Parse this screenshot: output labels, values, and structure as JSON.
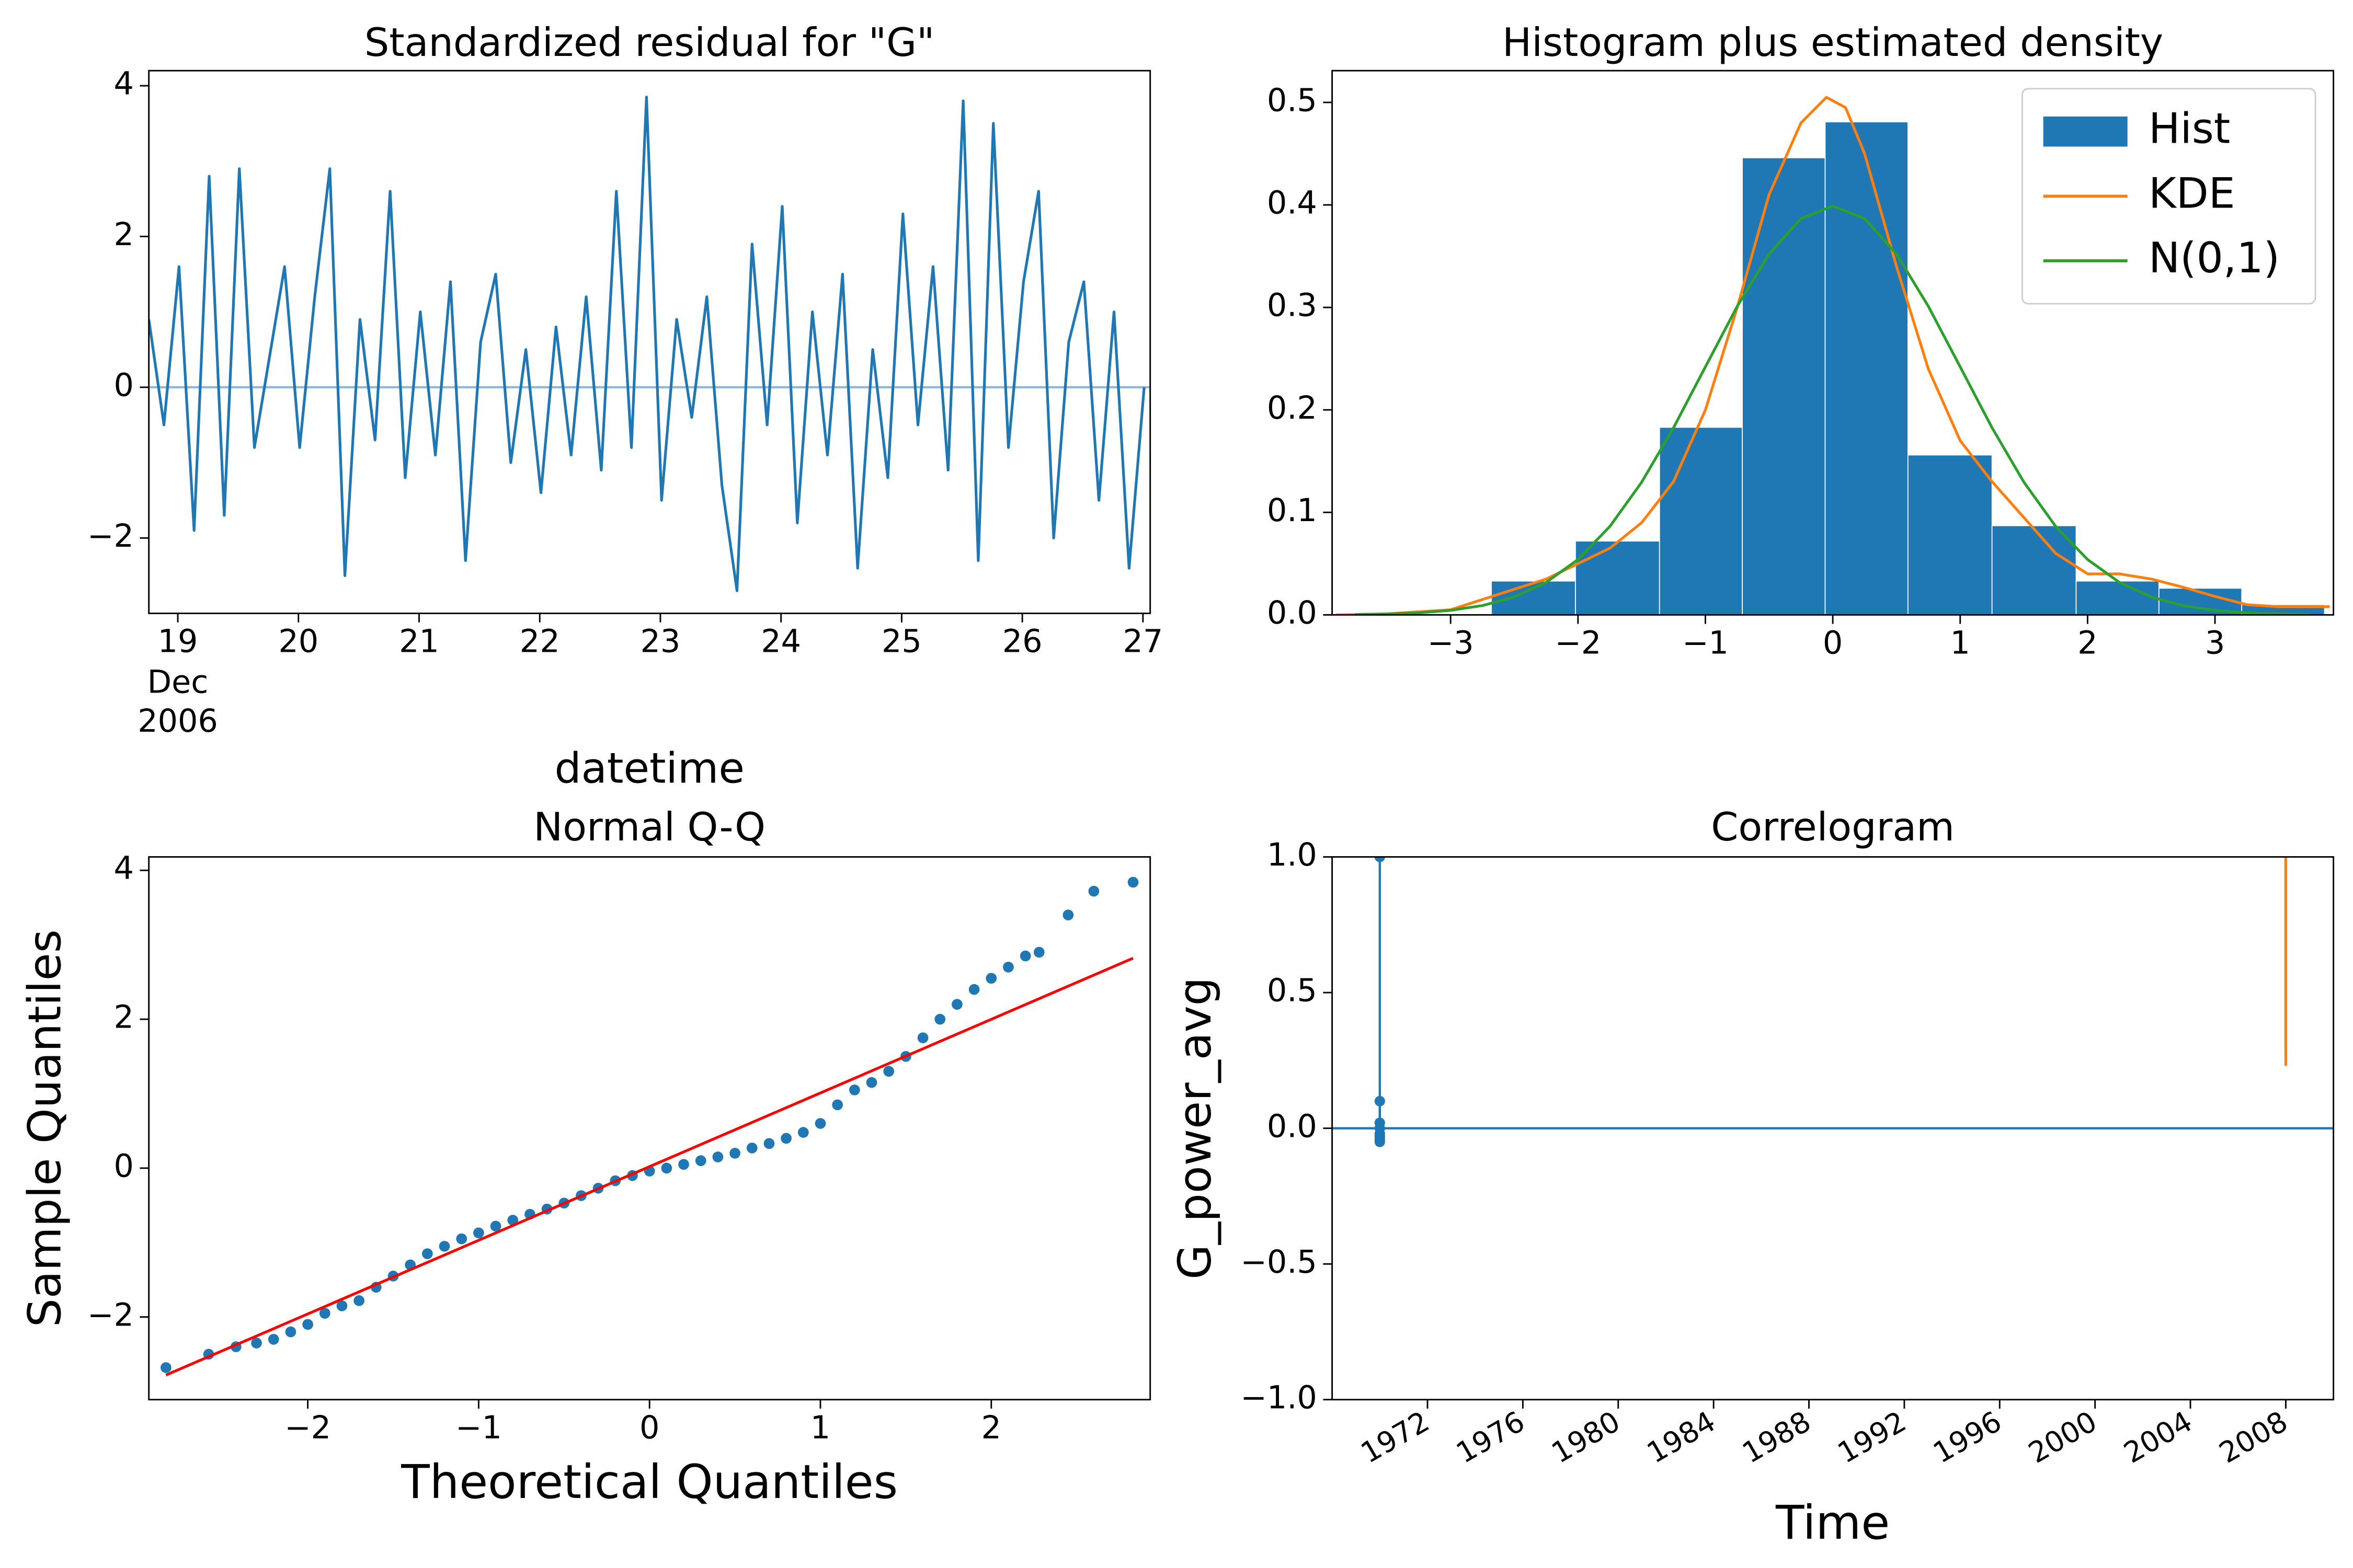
{
  "chart_data": [
    {
      "type": "line",
      "title": "Standardized residual for \"G\"",
      "xlabel": "datetime",
      "x": [
        18.76,
        18.885,
        19.01,
        19.135,
        19.26,
        19.385,
        19.51,
        19.635,
        19.76,
        19.885,
        20.01,
        20.135,
        20.26,
        20.385,
        20.51,
        20.635,
        20.76,
        20.885,
        21.01,
        21.135,
        21.26,
        21.385,
        21.51,
        21.635,
        21.76,
        21.885,
        22.01,
        22.135,
        22.26,
        22.385,
        22.51,
        22.635,
        22.76,
        22.885,
        23.01,
        23.135,
        23.26,
        23.385,
        23.51,
        23.635,
        23.76,
        23.885,
        24.01,
        24.135,
        24.26,
        24.385,
        24.51,
        24.635,
        24.76,
        24.885,
        25.01,
        25.135,
        25.26,
        25.385,
        25.51,
        25.635,
        25.76,
        25.885,
        26.01,
        26.135,
        26.26,
        26.385,
        26.51,
        26.635,
        26.76,
        26.885,
        27.01
      ],
      "series": [
        {
          "color": "#1f77b4",
          "values": [
            0.9,
            -0.5,
            1.6,
            -1.9,
            2.8,
            -1.7,
            2.9,
            -0.8,
            0.4,
            1.6,
            -0.8,
            1.2,
            2.9,
            -2.5,
            0.9,
            -0.7,
            2.6,
            -1.2,
            1.0,
            -0.9,
            1.4,
            -2.3,
            0.6,
            1.5,
            -1.0,
            0.5,
            -1.4,
            0.8,
            -0.9,
            1.2,
            -1.1,
            2.6,
            -0.8,
            3.85,
            -1.5,
            0.9,
            -0.4,
            1.2,
            -1.3,
            -2.7,
            1.9,
            -0.5,
            2.4,
            -1.8,
            1.0,
            -0.9,
            1.5,
            -2.4,
            0.5,
            -1.2,
            2.3,
            -0.5,
            1.6,
            -1.1,
            3.8,
            -2.3,
            3.5,
            -0.8,
            1.4,
            2.6,
            -2.0,
            0.6,
            1.4,
            -1.5,
            1.0,
            -2.4,
            0.0
          ]
        }
      ],
      "hline": 0,
      "hline_color": "#8fb8d8",
      "xlim": [
        18.76,
        27.06
      ],
      "xticks": [
        19,
        20,
        21,
        22,
        23,
        24,
        25,
        26,
        27
      ],
      "x_sublabels": [
        "Dec",
        "2006"
      ],
      "ylim": [
        -3.0,
        4.2
      ],
      "yticks": [
        {
          "value": -2,
          "label": "−2"
        },
        0,
        2,
        4
      ]
    },
    {
      "type": "histogram",
      "title": "Histogram plus estimated density",
      "legend": "upper right",
      "series": [
        {
          "name": "Hist",
          "style": "hist",
          "color": "#1f77b4",
          "bins": [
            -2.68,
            -2.02,
            -1.36,
            -0.71,
            -0.06,
            0.59,
            1.25,
            1.91,
            2.56,
            3.21,
            3.86
          ],
          "values": [
            0.033,
            0.072,
            0.183,
            0.446,
            0.481,
            0.156,
            0.087,
            0.033,
            0.026,
            0.01
          ]
        },
        {
          "name": "KDE",
          "style": "line",
          "color": "#ff7f0e",
          "x": [
            -3.9,
            -3.5,
            -3.0,
            -2.75,
            -2.5,
            -2.25,
            -2.0,
            -1.75,
            -1.5,
            -1.25,
            -1.0,
            -0.75,
            -0.5,
            -0.25,
            -0.05,
            0.1,
            0.25,
            0.5,
            0.75,
            1.0,
            1.25,
            1.5,
            1.75,
            2.0,
            2.25,
            2.5,
            2.75,
            3.0,
            3.25,
            3.5,
            3.9
          ],
          "values": [
            0.0,
            0.001,
            0.005,
            0.015,
            0.025,
            0.035,
            0.05,
            0.065,
            0.09,
            0.13,
            0.2,
            0.3,
            0.41,
            0.48,
            0.505,
            0.495,
            0.45,
            0.34,
            0.24,
            0.17,
            0.13,
            0.095,
            0.06,
            0.04,
            0.04,
            0.035,
            0.027,
            0.018,
            0.01,
            0.008,
            0.008
          ]
        },
        {
          "name": "N(0,1)",
          "style": "line",
          "color": "#2ca02c",
          "x": [
            -3.75,
            -3.5,
            -3.25,
            -3.0,
            -2.75,
            -2.5,
            -2.25,
            -2.0,
            -1.75,
            -1.5,
            -1.25,
            -1.0,
            -0.75,
            -0.5,
            -0.25,
            0,
            0.25,
            0.5,
            0.75,
            1.0,
            1.25,
            1.5,
            1.75,
            2.0,
            2.25,
            2.5,
            2.75,
            3.0,
            3.25,
            3.5,
            3.75
          ],
          "values": [
            0.0004,
            0.0009,
            0.002,
            0.0044,
            0.0091,
            0.0175,
            0.0317,
            0.054,
            0.0863,
            0.1295,
            0.1826,
            0.242,
            0.3011,
            0.3521,
            0.3867,
            0.3989,
            0.3867,
            0.3521,
            0.3011,
            0.242,
            0.1826,
            0.1295,
            0.0863,
            0.054,
            0.0317,
            0.0175,
            0.0091,
            0.0044,
            0.002,
            0.0009,
            0.0004
          ]
        }
      ],
      "xlim": [
        -3.93,
        3.93
      ],
      "xticks": [
        {
          "value": -3,
          "label": "−3"
        },
        {
          "value": -2,
          "label": "−2"
        },
        {
          "value": -1,
          "label": "−1"
        },
        0,
        1,
        2,
        3
      ],
      "ylim": [
        0,
        0.531
      ],
      "yticks": [
        {
          "value": 0,
          "label": "0.0"
        },
        0.1,
        0.2,
        0.3,
        0.4,
        0.5
      ]
    },
    {
      "type": "scatter",
      "title": "Normal Q-Q",
      "xlabel": "Theoretical Quantiles",
      "ylabel": "Sample Quantiles",
      "series": [
        {
          "style": "scatter",
          "color": "#1f77b4",
          "x": [
            -2.83,
            -2.58,
            -2.42,
            -2.3,
            -2.2,
            -2.1,
            -2.0,
            -1.9,
            -1.8,
            -1.7,
            -1.6,
            -1.5,
            -1.4,
            -1.3,
            -1.2,
            -1.1,
            -1.0,
            -0.9,
            -0.8,
            -0.7,
            -0.6,
            -0.5,
            -0.4,
            -0.3,
            -0.2,
            -0.1,
            0,
            0.1,
            0.2,
            0.3,
            0.4,
            0.5,
            0.6,
            0.7,
            0.8,
            0.9,
            1.0,
            1.1,
            1.2,
            1.3,
            1.4,
            1.5,
            1.6,
            1.7,
            1.8,
            1.9,
            2.0,
            2.1,
            2.2,
            2.28,
            2.45,
            2.6,
            2.83
          ],
          "values": [
            -2.68,
            -2.5,
            -2.4,
            -2.35,
            -2.3,
            -2.2,
            -2.1,
            -1.95,
            -1.85,
            -1.78,
            -1.6,
            -1.45,
            -1.3,
            -1.15,
            -1.05,
            -0.95,
            -0.87,
            -0.78,
            -0.7,
            -0.62,
            -0.55,
            -0.47,
            -0.37,
            -0.27,
            -0.17,
            -0.1,
            -0.04,
            0.0,
            0.05,
            0.1,
            0.15,
            0.2,
            0.27,
            0.33,
            0.4,
            0.48,
            0.6,
            0.85,
            1.05,
            1.15,
            1.3,
            1.5,
            1.75,
            2.0,
            2.2,
            2.4,
            2.55,
            2.7,
            2.85,
            2.9,
            3.4,
            3.72,
            3.84
          ]
        },
        {
          "style": "line",
          "color": "#ff0000",
          "x": [
            -2.83,
            2.83
          ],
          "values": [
            -2.78,
            2.82
          ]
        }
      ],
      "xlim": [
        -2.93,
        2.93
      ],
      "xticks": [
        {
          "value": -2,
          "label": "−2"
        },
        {
          "value": -1,
          "label": "−1"
        },
        0,
        1,
        2
      ],
      "ylim": [
        -3.11,
        4.18
      ],
      "yticks": [
        {
          "value": -2,
          "label": "−2"
        },
        0,
        2,
        4
      ]
    },
    {
      "type": "stem",
      "title": "Correlogram",
      "xlabel": "Time",
      "ylabel": "G_power_avg",
      "series": [
        {
          "style": "stem",
          "color": "#1f77b4",
          "x": [
            1970,
            1970,
            1970,
            1970,
            1970,
            1970,
            1970,
            1970
          ],
          "values": [
            1.0,
            0.1,
            0.02,
            -0.02,
            -0.04,
            -0.05,
            0.0,
            -0.03
          ]
        },
        {
          "style": "line",
          "color": "#2ca02c",
          "x": [
            2008,
            2008
          ],
          "values": [
            0.27,
            1.0
          ]
        },
        {
          "style": "line",
          "color": "#ff7f0e",
          "x": [
            2008,
            2008
          ],
          "values": [
            0.23,
            1.0
          ]
        }
      ],
      "hline": 0,
      "hline_color": "#1f77b4",
      "xlim": [
        1968.0,
        2010.0
      ],
      "xticks": [
        1972,
        1976,
        1980,
        1984,
        1988,
        1992,
        1996,
        2000,
        2004,
        2008
      ],
      "ylim": [
        -1,
        1
      ],
      "yticks": [
        {
          "value": -1,
          "label": "−1.0"
        },
        {
          "value": -0.5,
          "label": "−0.5"
        },
        {
          "value": 0,
          "label": "0.0"
        },
        0.5,
        {
          "value": 1,
          "label": "1.0"
        }
      ]
    }
  ]
}
